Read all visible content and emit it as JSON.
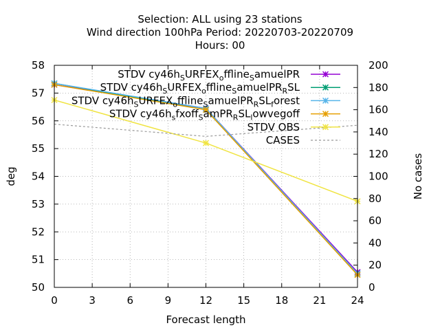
{
  "chart_data": {
    "type": "line",
    "title": [
      "Selection: ALL using    23 stations",
      "Wind direction 100hPa   Period: 20220703-20220709",
      "Hours:  00"
    ],
    "xlabel": "Forecast length",
    "ylabel": "deg",
    "y2label": "No cases",
    "xlim": [
      0,
      24
    ],
    "ylim": [
      50,
      58
    ],
    "y2lim": [
      0,
      200
    ],
    "xticks": [
      0,
      3,
      6,
      9,
      12,
      15,
      18,
      21,
      24
    ],
    "yticks": [
      50,
      51,
      52,
      53,
      54,
      55,
      56,
      57,
      58
    ],
    "y2ticks": [
      0,
      20,
      40,
      60,
      80,
      100,
      120,
      140,
      160,
      180,
      200
    ],
    "grid": true,
    "legend_position": "top-right",
    "series": [
      {
        "name": "STDV cy46h_SURFEX_offline_samuelPR",
        "legend_parts": [
          [
            "STDV cy46h",
            "n"
          ],
          [
            "S",
            "sub"
          ],
          [
            "URFEX",
            "n"
          ],
          [
            "o",
            "sub"
          ],
          [
            "ffline",
            "n"
          ],
          [
            "S",
            "sub"
          ],
          [
            "amuelPR",
            "n"
          ]
        ],
        "color": "#9400d3",
        "marker": "x-star",
        "axis": "y",
        "x": [
          0,
          12,
          24
        ],
        "y": [
          57.3,
          56.45,
          50.55
        ]
      },
      {
        "name": "STDV cy46h_SURFEX_offline_samuelPR_RSL",
        "legend_parts": [
          [
            "STDV cy46h",
            "n"
          ],
          [
            "S",
            "sub"
          ],
          [
            "URFEX",
            "n"
          ],
          [
            "o",
            "sub"
          ],
          [
            "ffline",
            "n"
          ],
          [
            "S",
            "sub"
          ],
          [
            "amuelPR",
            "n"
          ],
          [
            "R",
            "sub"
          ],
          [
            "SL",
            "n"
          ]
        ],
        "color": "#009e73",
        "marker": "x-star",
        "axis": "y",
        "x": [
          0,
          12,
          24
        ],
        "y": [
          57.35,
          56.4,
          50.5
        ]
      },
      {
        "name": "STDV cy46h_SURFEX_offline_samuelPR_RSL_forest",
        "legend_parts": [
          [
            "STDV cy46h",
            "n"
          ],
          [
            "S",
            "sub"
          ],
          [
            "URFEX",
            "n"
          ],
          [
            "o",
            "sub"
          ],
          [
            "ffline",
            "n"
          ],
          [
            "S",
            "sub"
          ],
          [
            "amuelPR",
            "n"
          ],
          [
            "R",
            "sub"
          ],
          [
            "SL",
            "n"
          ],
          [
            "f",
            "sub"
          ],
          [
            "orest",
            "n"
          ]
        ],
        "color": "#56b4e9",
        "marker": "x-star",
        "axis": "y",
        "x": [
          0,
          12,
          24
        ],
        "y": [
          57.35,
          56.45,
          50.5
        ]
      },
      {
        "name": "STDV cy46h_sfxoff_samPR_RSL_lowvegoff",
        "legend_parts": [
          [
            "STDV cy46h",
            "n"
          ],
          [
            "s",
            "sub"
          ],
          [
            "fxoff",
            "n"
          ],
          [
            "S",
            "sub"
          ],
          [
            "amPR",
            "n"
          ],
          [
            "R",
            "sub"
          ],
          [
            "SL",
            "n"
          ],
          [
            "l",
            "sub"
          ],
          [
            "owvegoff",
            "n"
          ]
        ],
        "color": "#e69f00",
        "marker": "x-star",
        "axis": "y",
        "x": [
          0,
          12,
          24
        ],
        "y": [
          57.3,
          56.4,
          50.45
        ]
      },
      {
        "name": "STDV OBS",
        "legend_parts": [
          [
            "STDV OBS",
            "n"
          ]
        ],
        "color": "#f0e442",
        "marker": "x-star",
        "axis": "y",
        "x": [
          0,
          12,
          24
        ],
        "y": [
          56.75,
          55.2,
          53.1
        ]
      },
      {
        "name": "CASES",
        "legend_parts": [
          [
            "CASES",
            "n"
          ]
        ],
        "color": "#999999",
        "marker": "none",
        "dashed": true,
        "axis": "y2",
        "x": [
          0,
          12,
          24
        ],
        "y": [
          147,
          136,
          146
        ]
      }
    ]
  }
}
